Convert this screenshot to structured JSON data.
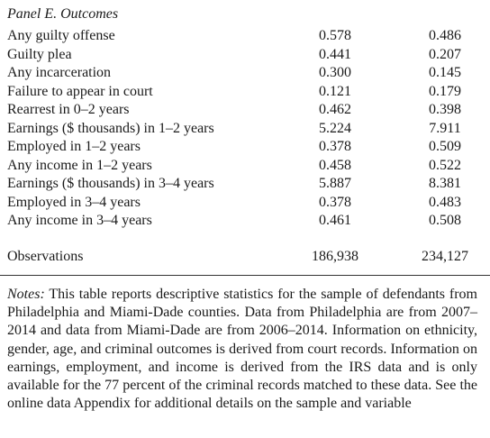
{
  "panel": {
    "title": "Panel E. Outcomes"
  },
  "rows": [
    {
      "label": "Any guilty offense",
      "philadelphia": "0.578",
      "miami_dade": "0.486"
    },
    {
      "label": "Guilty plea",
      "philadelphia": "0.441",
      "miami_dade": "0.207"
    },
    {
      "label": "Any incarceration",
      "philadelphia": "0.300",
      "miami_dade": "0.145"
    },
    {
      "label": "Failure to appear in court",
      "philadelphia": "0.121",
      "miami_dade": "0.179"
    },
    {
      "label": "Rearrest in 0–2 years",
      "philadelphia": "0.462",
      "miami_dade": "0.398"
    },
    {
      "label": "Earnings ($ thousands) in 1–2 years",
      "philadelphia": "5.224",
      "miami_dade": "7.911"
    },
    {
      "label": "Employed in 1–2 years",
      "philadelphia": "0.378",
      "miami_dade": "0.509"
    },
    {
      "label": "Any income in 1–2 years",
      "philadelphia": "0.458",
      "miami_dade": "0.522"
    },
    {
      "label": "Earnings ($ thousands) in 3–4 years",
      "philadelphia": "5.887",
      "miami_dade": "8.381"
    },
    {
      "label": "Employed in 3–4 years",
      "philadelphia": "0.378",
      "miami_dade": "0.483"
    },
    {
      "label": "Any income in 3–4 years",
      "philadelphia": "0.461",
      "miami_dade": "0.508"
    }
  ],
  "observations": {
    "label": "Observations",
    "philadelphia": "186,938",
    "miami_dade": "234,127"
  },
  "notes": {
    "label": "Notes:",
    "text": "This table reports descriptive statistics for the sample of defendants from Philadelphia and Miami-Dade counties. Data from Philadelphia are from 2007–2014 and data from Miami-Dade are from 2006–2014. Information on ethnicity, gender, age, and criminal out­comes is derived from court records. Information on earnings, employ­ment, and income is derived from the IRS data and is only available for the 77 percent of the criminal records matched to these data. See the online data Appendix for additional details on the sample and variable"
  }
}
